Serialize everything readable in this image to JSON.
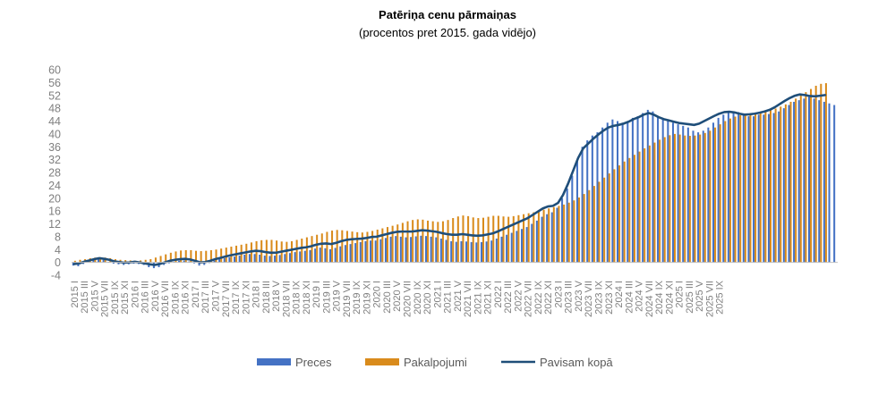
{
  "chart_data": {
    "type": "bar",
    "title": "Patēriņa cenu pārmaiņas",
    "subtitle": "(procentos pret 2015. gada vidējo)",
    "ylim": [
      -4,
      60
    ],
    "yticks": [
      -4,
      0,
      4,
      8,
      12,
      16,
      20,
      24,
      28,
      32,
      36,
      40,
      44,
      48,
      52,
      56,
      60
    ],
    "grid": false,
    "legend_position": "bottom",
    "x_start": "2015-01",
    "x_end": "2025-10",
    "x_tick_labels": [
      "2015 I",
      "2015 III",
      "2015 V",
      "2015 VII",
      "2015 IX",
      "2015 XI",
      "2016 I",
      "2016 III",
      "2016 V",
      "2016 VII",
      "2016 IX",
      "2016 XI",
      "2017 I",
      "2017 III",
      "2017 V",
      "2017 VII",
      "2017 IX",
      "2017 XI",
      "2018 I",
      "2018 III",
      "2018 V",
      "2018 VII",
      "2018 IX",
      "2018 XI",
      "2019 I",
      "2019 III",
      "2019 V",
      "2019 VII",
      "2019 IX",
      "2019 XI",
      "2020 I",
      "2020 III",
      "2020 V",
      "2020 VII",
      "2020 IX",
      "2020 XI",
      "2021 I",
      "2021 III",
      "2021 V",
      "2021 VII",
      "2021 IX",
      "2021 XI",
      "2022 I",
      "2022 III",
      "2022 V",
      "2022 VII",
      "2022 IX",
      "2022 XI",
      "2023 I",
      "2023 III",
      "2023 V",
      "2023 VII",
      "2023 IX",
      "2023 XI",
      "2024 I",
      "2024 III",
      "2024 V",
      "2024 VII",
      "2024 IX",
      "2024 XI",
      "2025 I",
      "2025 III",
      "2025 V",
      "2025 VII",
      "2025 IX"
    ],
    "series_styles": [
      {
        "key": "preces",
        "type": "bar",
        "color": "#4472c4"
      },
      {
        "key": "pakalpojumi",
        "type": "bar",
        "color": "#d98b1c"
      },
      {
        "key": "pavisam",
        "type": "line",
        "color": "#1f4e79"
      }
    ],
    "series": [
      {
        "name": "Preces",
        "values": [
          -1.0,
          -1.2,
          -0.5,
          0.3,
          0.8,
          1.2,
          0.8,
          0.2,
          -0.4,
          -0.6,
          -0.8,
          -0.6,
          -0.4,
          -0.5,
          -0.8,
          -1.5,
          -1.8,
          -1.5,
          -0.8,
          -0.3,
          0.2,
          0.5,
          0.6,
          0.3,
          -0.3,
          -1.0,
          -0.8,
          -0.2,
          0.5,
          1.0,
          1.3,
          1.6,
          1.8,
          2.1,
          2.4,
          2.6,
          2.6,
          2.4,
          2.1,
          2.0,
          2.1,
          2.3,
          2.6,
          2.9,
          3.2,
          3.4,
          3.6,
          3.8,
          4.3,
          4.6,
          4.4,
          4.1,
          4.5,
          5.0,
          5.4,
          5.7,
          6.0,
          6.3,
          6.6,
          6.8,
          6.8,
          7.2,
          7.6,
          8.0,
          8.2,
          8.0,
          7.8,
          7.9,
          8.1,
          8.3,
          8.2,
          8.0,
          7.8,
          7.4,
          7.0,
          6.6,
          6.4,
          6.6,
          6.5,
          6.3,
          6.2,
          6.3,
          6.5,
          6.8,
          7.4,
          8.0,
          8.6,
          9.2,
          9.8,
          10.4,
          11.0,
          12.0,
          13.0,
          14.2,
          15.0,
          15.6,
          17.0,
          20.0,
          23.0,
          27.0,
          32.0,
          36.0,
          38.0,
          39.5,
          40.5,
          42.0,
          43.5,
          44.5,
          44.0,
          43.5,
          44.0,
          45.0,
          45.5,
          46.5,
          47.5,
          47.0,
          45.5,
          44.5,
          44.0,
          43.5,
          43.0,
          42.5,
          42.0,
          41.0,
          40.5,
          41.0,
          42.0,
          43.5,
          45.0,
          46.0,
          46.5,
          47.0,
          46.8,
          46.0,
          45.5,
          45.5,
          46.0,
          46.0,
          46.2,
          46.5,
          47.0,
          48.0,
          49.0,
          50.0,
          50.5,
          51.0,
          51.5,
          51.0,
          50.5,
          50.0,
          49.5,
          49.0
        ]
      },
      {
        "name": "Pakalpojumi",
        "values": [
          0.5,
          0.8,
          1.0,
          1.3,
          1.5,
          1.6,
          1.5,
          1.3,
          1.0,
          0.8,
          0.7,
          0.6,
          0.5,
          0.6,
          0.8,
          1.0,
          1.5,
          2.0,
          2.5,
          3.0,
          3.4,
          3.7,
          3.8,
          3.8,
          3.6,
          3.5,
          3.6,
          3.8,
          4.0,
          4.3,
          4.6,
          4.9,
          5.2,
          5.5,
          5.8,
          6.2,
          6.6,
          6.9,
          7.0,
          7.0,
          6.8,
          6.5,
          6.4,
          6.6,
          7.0,
          7.4,
          7.8,
          8.2,
          8.6,
          9.0,
          9.5,
          9.9,
          10.1,
          10.0,
          9.8,
          9.6,
          9.4,
          9.3,
          9.5,
          9.8,
          10.2,
          10.6,
          11.0,
          11.4,
          11.8,
          12.3,
          12.8,
          13.2,
          13.4,
          13.3,
          13.0,
          12.8,
          12.6,
          12.8,
          13.2,
          13.8,
          14.3,
          14.6,
          14.4,
          14.0,
          13.8,
          13.9,
          14.2,
          14.5,
          14.5,
          14.3,
          14.2,
          14.4,
          14.7,
          15.0,
          15.3,
          15.6,
          16.0,
          16.4,
          16.8,
          17.2,
          17.6,
          18.0,
          18.6,
          19.3,
          20.2,
          21.3,
          22.5,
          23.8,
          25.1,
          26.4,
          27.7,
          29.0,
          30.2,
          31.4,
          32.5,
          33.5,
          34.5,
          35.5,
          36.4,
          37.3,
          38.2,
          39.0,
          39.6,
          40.0,
          39.8,
          39.5,
          39.4,
          39.5,
          39.8,
          40.3,
          41.0,
          42.0,
          43.0,
          44.0,
          44.8,
          45.4,
          45.8,
          46.0,
          46.3,
          46.6,
          46.9,
          47.2,
          47.5,
          47.9,
          48.5,
          49.2,
          50.0,
          51.0,
          52.0,
          53.0,
          54.0,
          55.0,
          55.6,
          55.8
        ]
      },
      {
        "name": "Pavisam kopā",
        "values": [
          -0.5,
          -0.3,
          0.2,
          0.6,
          1.0,
          1.3,
          1.1,
          0.8,
          0.3,
          0.1,
          -0.1,
          0.0,
          0.2,
          0.0,
          -0.3,
          -0.6,
          -0.8,
          -0.5,
          0.0,
          0.5,
          0.8,
          1.0,
          1.1,
          0.9,
          0.5,
          0.0,
          0.1,
          0.5,
          1.0,
          1.4,
          1.8,
          2.2,
          2.5,
          2.8,
          3.1,
          3.4,
          3.6,
          3.5,
          3.2,
          3.0,
          3.0,
          3.3,
          3.6,
          3.9,
          4.2,
          4.5,
          4.7,
          5.0,
          5.5,
          5.8,
          5.9,
          5.7,
          6.1,
          6.6,
          7.0,
          7.2,
          7.3,
          7.4,
          7.6,
          7.9,
          8.0,
          8.4,
          8.8,
          9.2,
          9.5,
          9.6,
          9.6,
          9.6,
          9.8,
          10.0,
          9.9,
          9.7,
          9.5,
          9.1,
          8.8,
          8.6,
          8.6,
          8.8,
          8.6,
          8.4,
          8.3,
          8.4,
          8.7,
          9.0,
          9.6,
          10.3,
          11.0,
          11.7,
          12.4,
          13.1,
          13.8,
          14.8,
          15.8,
          16.8,
          17.4,
          17.6,
          18.5,
          21.0,
          24.5,
          28.5,
          32.5,
          35.5,
          37.0,
          38.5,
          39.8,
          41.0,
          42.0,
          42.5,
          42.8,
          43.2,
          43.8,
          44.6,
          45.2,
          46.0,
          46.5,
          46.0,
          45.2,
          44.6,
          44.2,
          43.8,
          43.4,
          43.2,
          43.0,
          42.8,
          43.2,
          44.0,
          44.8,
          45.6,
          46.3,
          46.8,
          46.9,
          46.7,
          46.3,
          46.0,
          46.1,
          46.3,
          46.6,
          47.0,
          47.5,
          48.3,
          49.3,
          50.3,
          51.2,
          51.9,
          52.3,
          52.1,
          51.8,
          51.7,
          51.9,
          52.1
        ]
      }
    ]
  }
}
